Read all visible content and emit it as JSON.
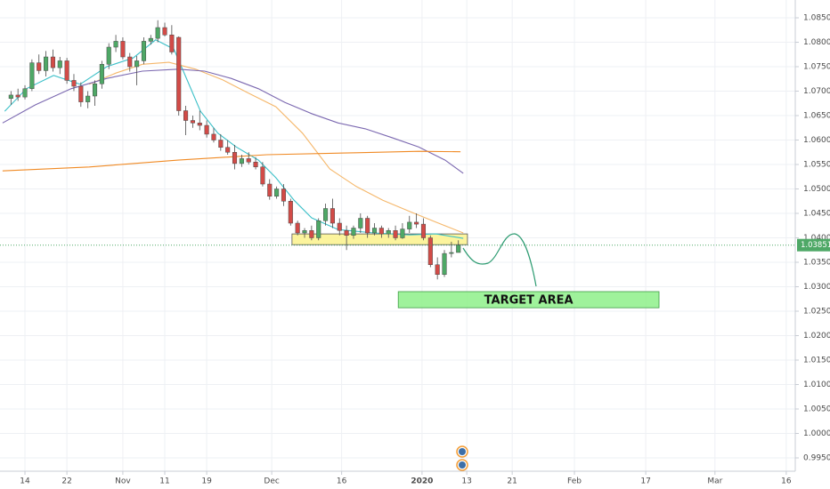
{
  "chart_data": {
    "type": "candlestick",
    "x": [
      -2,
      -1,
      0,
      1,
      2,
      3,
      4,
      5,
      6,
      7,
      8,
      9,
      10,
      11,
      12,
      13,
      14,
      15,
      16,
      17,
      18,
      19,
      20,
      21,
      22,
      23,
      24,
      25,
      26,
      27,
      28,
      29,
      30,
      31,
      32,
      33,
      34,
      35,
      36,
      37,
      38,
      39,
      40,
      41,
      42,
      43,
      44,
      45,
      46,
      47,
      48,
      49,
      50,
      51,
      52,
      53,
      54,
      55,
      56,
      57,
      58,
      59,
      60,
      61,
      62
    ],
    "open": [
      1.0685,
      1.0692,
      1.0688,
      1.0705,
      1.0758,
      1.0742,
      1.077,
      1.0748,
      1.0762,
      1.0722,
      1.071,
      1.0678,
      1.069,
      1.0715,
      1.0755,
      1.079,
      1.0802,
      1.077,
      1.075,
      1.0762,
      1.0802,
      1.0808,
      1.083,
      1.0815,
      1.081,
      1.066,
      1.064,
      1.0635,
      1.063,
      1.0612,
      1.06,
      1.0585,
      1.0575,
      1.0552,
      1.0562,
      1.0555,
      1.0545,
      1.051,
      1.0485,
      1.05,
      1.0475,
      1.043,
      1.041,
      1.0415,
      1.04,
      1.0435,
      1.046,
      1.043,
      1.0415,
      1.0405,
      1.042,
      1.044,
      1.041,
      1.042,
      1.0408,
      1.0415,
      1.04,
      1.0418,
      1.0432,
      1.0428,
      1.04,
      1.0345,
      1.0325,
      1.0368,
      1.037
    ],
    "high": [
      1.07,
      1.0705,
      1.0712,
      1.0765,
      1.0775,
      1.0782,
      1.0785,
      1.077,
      1.0768,
      1.0735,
      1.0718,
      1.07,
      1.0722,
      1.0762,
      1.0798,
      1.0815,
      1.081,
      1.0778,
      1.0772,
      1.081,
      1.0815,
      1.0845,
      1.084,
      1.0835,
      1.0812,
      1.067,
      1.065,
      1.066,
      1.064,
      1.0625,
      1.0612,
      1.06,
      1.059,
      1.057,
      1.0575,
      1.0565,
      1.0555,
      1.052,
      1.0505,
      1.051,
      1.048,
      1.0435,
      1.042,
      1.0425,
      1.044,
      1.047,
      1.048,
      1.044,
      1.0425,
      1.0425,
      1.045,
      1.0445,
      1.043,
      1.0425,
      1.042,
      1.0425,
      1.043,
      1.0445,
      1.045,
      1.044,
      1.0405,
      1.036,
      1.0375,
      1.0392,
      1.0395
    ],
    "low": [
      1.0672,
      1.068,
      1.0683,
      1.07,
      1.0735,
      1.073,
      1.074,
      1.0735,
      1.0715,
      1.07,
      1.0668,
      1.0665,
      1.067,
      1.0705,
      1.0745,
      1.078,
      1.0765,
      1.074,
      1.0712,
      1.0755,
      1.0795,
      1.08,
      1.0812,
      1.0775,
      1.065,
      1.061,
      1.0625,
      1.062,
      1.0605,
      1.0595,
      1.0578,
      1.057,
      1.054,
      1.0545,
      1.055,
      1.054,
      1.0505,
      1.0478,
      1.048,
      1.0465,
      1.0425,
      1.0405,
      1.04,
      1.0395,
      1.0395,
      1.0425,
      1.042,
      1.0405,
      1.0375,
      1.0398,
      1.041,
      1.04,
      1.0405,
      1.04,
      1.04,
      1.0395,
      1.0398,
      1.041,
      1.042,
      1.0395,
      1.034,
      1.0315,
      1.032,
      1.036,
      1.0378
    ],
    "close": [
      1.0692,
      1.0688,
      1.0705,
      1.0758,
      1.0742,
      1.077,
      1.0748,
      1.0762,
      1.0722,
      1.071,
      1.0678,
      1.069,
      1.0715,
      1.0755,
      1.079,
      1.0802,
      1.077,
      1.075,
      1.0762,
      1.0802,
      1.0808,
      1.083,
      1.0815,
      1.078,
      1.066,
      1.064,
      1.0635,
      1.063,
      1.0612,
      1.06,
      1.0585,
      1.0575,
      1.0552,
      1.0562,
      1.0555,
      1.0545,
      1.051,
      1.0485,
      1.05,
      1.0475,
      1.043,
      1.041,
      1.0415,
      1.04,
      1.0435,
      1.046,
      1.043,
      1.0415,
      1.0405,
      1.042,
      1.044,
      1.041,
      1.042,
      1.0408,
      1.0415,
      1.04,
      1.0418,
      1.0432,
      1.0428,
      1.04,
      1.0345,
      1.0325,
      1.0368,
      1.037,
      1.03851
    ],
    "up_color": "#4ea866",
    "down_color": "#d24b47",
    "xlim": [
      -3.57,
      110.19
    ],
    "ylim": [
      0.99227,
      1.08864
    ],
    "xticks": [
      {
        "value": 0,
        "label": "14"
      },
      {
        "value": 6.0,
        "label": "22"
      },
      {
        "value": 14.0,
        "label": "Nov"
      },
      {
        "value": 20.0,
        "label": "11"
      },
      {
        "value": 26.0,
        "label": "19"
      },
      {
        "value": 35.3,
        "label": "Dec"
      },
      {
        "value": 45.3,
        "label": "16"
      },
      {
        "value": 56.8,
        "label": "2020"
      },
      {
        "value": 63.2,
        "label": "13"
      },
      {
        "value": 69.7,
        "label": "21"
      },
      {
        "value": 78.6,
        "label": "Feb"
      },
      {
        "value": 88.8,
        "label": "17"
      },
      {
        "value": 98.7,
        "label": "Mar"
      },
      {
        "value": 108.9,
        "label": "16"
      }
    ],
    "yticks": [
      {
        "value": 0.995,
        "label": "0.99500"
      },
      {
        "value": 1.0,
        "label": "1.00000"
      },
      {
        "value": 1.005,
        "label": "1.00500"
      },
      {
        "value": 1.01,
        "label": "1.01000"
      },
      {
        "value": 1.015,
        "label": "1.01500"
      },
      {
        "value": 1.02,
        "label": "1.02000"
      },
      {
        "value": 1.025,
        "label": "1.02500"
      },
      {
        "value": 1.03,
        "label": "1.03000"
      },
      {
        "value": 1.035,
        "label": "1.03500"
      },
      {
        "value": 1.04,
        "label": "1.04000"
      },
      {
        "value": 1.045,
        "label": "1.04500"
      },
      {
        "value": 1.05,
        "label": "1.05000"
      },
      {
        "value": 1.055,
        "label": "1.05500"
      },
      {
        "value": 1.06,
        "label": "1.06000"
      },
      {
        "value": 1.065,
        "label": "1.06500"
      },
      {
        "value": 1.07,
        "label": "1.07000"
      },
      {
        "value": 1.075,
        "label": "1.07500"
      },
      {
        "value": 1.08,
        "label": "1.08000"
      },
      {
        "value": 1.085,
        "label": "1.08500"
      }
    ],
    "grid": true,
    "moving_averages": [
      {
        "color": "#3cc0c8",
        "x": [
          -2.9,
          0.2,
          4.1,
          7.9,
          11.7,
          15.5,
          18.7,
          21.3,
          23.2,
          25.1,
          27.6,
          30.2,
          33.4,
          35.9,
          38.5,
          41.0,
          44.8,
          49.9,
          55.0,
          58.8,
          62.7
        ],
        "values": [
          1.0659,
          1.0705,
          1.0732,
          1.0714,
          1.075,
          1.0768,
          1.0805,
          1.0786,
          1.0723,
          1.0659,
          1.0614,
          1.0586,
          1.0559,
          1.0523,
          1.0477,
          1.0441,
          1.0417,
          1.041,
          1.0406,
          1.0408,
          1.0399
        ]
      },
      {
        "color": "#f5b76a",
        "x": [
          9.2,
          13.0,
          16.8,
          20.6,
          24.4,
          28.3,
          32.1,
          35.9,
          39.7,
          43.6,
          47.4,
          51.2,
          55.0,
          58.8,
          62.7
        ],
        "values": [
          1.0714,
          1.0737,
          1.0755,
          1.0759,
          1.0745,
          1.0723,
          1.0695,
          1.0668,
          1.0614,
          1.0541,
          1.0505,
          1.0477,
          1.0454,
          1.0432,
          1.041
        ]
      },
      {
        "color": "#7b68b0",
        "x": [
          -3.2,
          1.5,
          6.6,
          11.7,
          16.8,
          21.9,
          25.7,
          29.5,
          33.4,
          37.2,
          41.0,
          44.8,
          48.7,
          52.5,
          56.3,
          60.1,
          62.7
        ],
        "values": [
          1.0635,
          1.0672,
          1.0705,
          1.0726,
          1.0741,
          1.0745,
          1.0741,
          1.0726,
          1.0705,
          1.0677,
          1.0654,
          1.0635,
          1.0623,
          1.0605,
          1.0586,
          1.0559,
          1.0532
        ]
      },
      {
        "color": "#f08a24",
        "x": [
          -3.2,
          9.2,
          21.9,
          34.6,
          47.4,
          56.3,
          62.3
        ],
        "values": [
          1.0537,
          1.0545,
          1.0559,
          1.057,
          1.0574,
          1.0577,
          1.0576
        ]
      }
    ],
    "zones": [
      {
        "x": [
          38.2,
          63.3
        ],
        "y": [
          1.0386,
          1.0408
        ],
        "color": "#fbf28c"
      },
      {
        "x": [
          53.4,
          90.7
        ],
        "y": [
          1.0257,
          1.029
        ],
        "color": "#8ef08a",
        "text": "TARGET AREA"
      }
    ],
    "last_price": 1.03851,
    "last_price_color": "#4ea866"
  }
}
